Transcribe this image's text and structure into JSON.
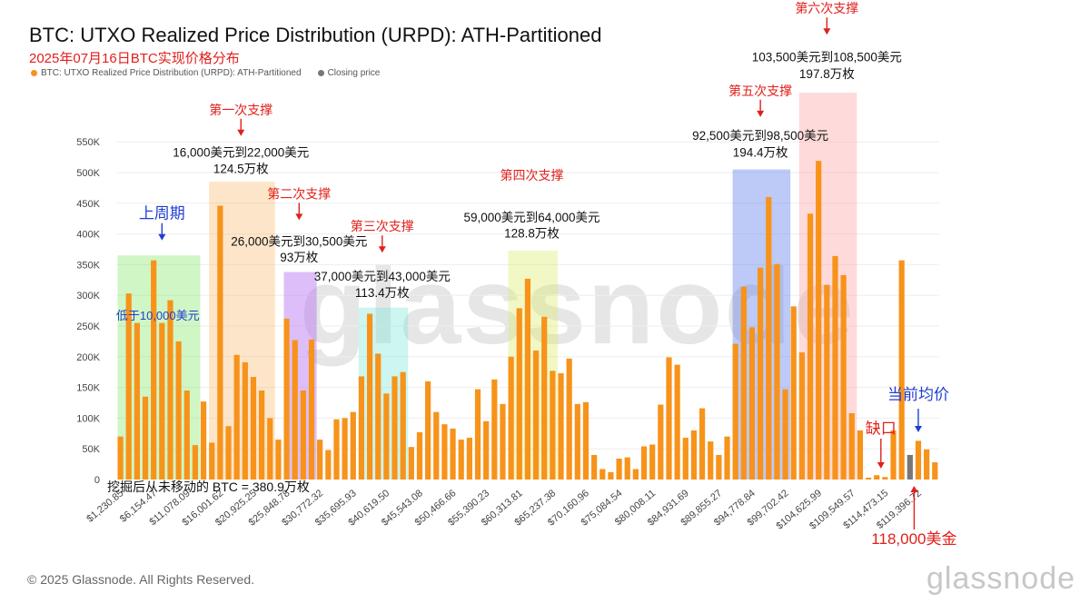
{
  "header": {
    "title": "BTC: UTXO Realized Price Distribution (URPD): ATH-Partitioned",
    "subtitle": "2025年07月16日BTC实现价格分布",
    "legend": [
      {
        "label": "BTC: UTXO Realized Price Distribution (URPD): ATH-Partitioned",
        "color": "#f7931a"
      },
      {
        "label": "Closing price",
        "color": "#777777"
      }
    ]
  },
  "watermark": "glassnode",
  "footer": {
    "copyright": "© 2025 Glassnode. All Rights Reserved.",
    "logo": "glassnode"
  },
  "chart_data": {
    "type": "bar",
    "ylim": [
      0,
      560000
    ],
    "y_ticks": [
      0,
      50000,
      100000,
      150000,
      200000,
      250000,
      300000,
      350000,
      400000,
      450000,
      500000,
      550000
    ],
    "y_tick_labels": [
      "0",
      "50K",
      "100K",
      "150K",
      "200K",
      "250K",
      "300K",
      "350K",
      "400K",
      "450K",
      "500K",
      "550K"
    ],
    "x_tick_labels": [
      "$1,230.85",
      "$6,154.47",
      "$11,078.09",
      "$16,001.62",
      "$20,925.25",
      "$25,848.78",
      "$30,772.32",
      "$35,695.93",
      "$40,619.50",
      "$45,543.08",
      "$50,466.66",
      "$55,390.23",
      "$60,313.81",
      "$65,237.38",
      "$70,160.96",
      "$75,084.54",
      "$80,008.11",
      "$84,931.69",
      "$89,855.27",
      "$94,778.84",
      "$99,702.42",
      "$104,625.99",
      "$109,549.57",
      "$114,473.15",
      "$119,396.72"
    ],
    "values": [
      70000,
      303000,
      255000,
      135000,
      357000,
      255000,
      292000,
      225000,
      145000,
      56000,
      127000,
      60000,
      446000,
      87000,
      203000,
      191000,
      167000,
      145000,
      100000,
      65000,
      262000,
      227000,
      145000,
      228000,
      65000,
      48000,
      98000,
      100000,
      110000,
      168000,
      270000,
      205000,
      140000,
      168000,
      175000,
      53000,
      77000,
      160000,
      110000,
      90000,
      83000,
      65000,
      68000,
      147000,
      95000,
      163000,
      123000,
      200000,
      279000,
      327000,
      210000,
      265000,
      177000,
      173000,
      197000,
      123000,
      126000,
      40000,
      17000,
      12000,
      34000,
      36000,
      17000,
      54000,
      57000,
      122000,
      199000,
      187000,
      68000,
      80000,
      116000,
      62000,
      40000,
      70000,
      221000,
      314000,
      248000,
      345000,
      460000,
      351000,
      147000,
      282000,
      207000,
      433000,
      519000,
      317000,
      364000,
      333000,
      108000,
      80000,
      3000,
      7000,
      4000,
      80000,
      357000,
      40000,
      63000,
      49000,
      28000
    ],
    "closing_index": 95,
    "bar_color": "#f7931a",
    "closing_color": "#777777",
    "bottom_note": "挖掘后从未移动的 BTC = 380.9万枚",
    "regions": [
      {
        "name": "prev-cycle",
        "from": 0,
        "to": 9,
        "top": 365000,
        "color": "rgba(120,230,90,0.35)",
        "label": "低于10,000美元",
        "label_color": "#1f3fd0"
      },
      {
        "name": "support-1",
        "from": 11,
        "to": 18,
        "top": 485000,
        "color": "rgba(250,180,100,0.35)"
      },
      {
        "name": "support-2",
        "from": 20,
        "to": 23,
        "top": 338000,
        "color": "rgba(180,110,240,0.45)"
      },
      {
        "name": "support-3",
        "from": 29,
        "to": 34,
        "top": 280000,
        "color": "rgba(110,230,210,0.35)"
      },
      {
        "name": "support-4",
        "from": 47,
        "to": 52,
        "top": 373000,
        "color": "rgba(220,235,110,0.40)"
      },
      {
        "name": "support-5",
        "from": 74,
        "to": 80,
        "top": 505000,
        "color": "rgba(90,120,235,0.40)"
      },
      {
        "name": "support-6",
        "from": 82,
        "to": 88,
        "top": 630000,
        "color": "rgba(255,150,150,0.35)"
      }
    ],
    "annotations": [
      {
        "name": "prev-cycle-label",
        "text": "上周期",
        "color": "#1f3fd0",
        "size": 17,
        "cx": 5,
        "val": 425000,
        "arrow": true
      },
      {
        "name": "support-1-label",
        "text": "第一次支撑",
        "color": "#e0201b",
        "size": 14,
        "cx": 14.5,
        "val": 595000,
        "arrow": true
      },
      {
        "name": "support-1-range",
        "text": "16,000美元到22,000美元",
        "color": "#111",
        "size": 13.5,
        "cx": 14.5,
        "val": 526000
      },
      {
        "name": "support-1-amount",
        "text": "124.5万枚",
        "color": "#111",
        "size": 13.5,
        "cx": 14.5,
        "val": 499000
      },
      {
        "name": "support-2-label",
        "text": "第二次支撑",
        "color": "#e0201b",
        "size": 14,
        "cx": 21.5,
        "val": 458000,
        "arrow": true
      },
      {
        "name": "support-2-range",
        "text": "26,000美元到30,500美元",
        "color": "#111",
        "size": 13.5,
        "cx": 21.5,
        "val": 381000
      },
      {
        "name": "support-2-amount",
        "text": "93万枚",
        "color": "#111",
        "size": 13.5,
        "cx": 21.5,
        "val": 355000
      },
      {
        "name": "support-3-label",
        "text": "第三次支撑",
        "color": "#e0201b",
        "size": 14,
        "cx": 31.5,
        "val": 405000,
        "arrow": true
      },
      {
        "name": "support-3-range",
        "text": "37,000美元到43,000美元",
        "color": "#111",
        "size": 13.5,
        "cx": 31.5,
        "val": 324000
      },
      {
        "name": "support-3-amount",
        "text": "113.4万枚",
        "color": "#111",
        "size": 13.5,
        "cx": 31.5,
        "val": 297000
      },
      {
        "name": "support-4-label",
        "text": "第四次支撑",
        "color": "#e0201b",
        "size": 14,
        "cx": 49.5,
        "val": 488000
      },
      {
        "name": "support-4-range",
        "text": "59,000美元到64,000美元",
        "color": "#111",
        "size": 13.5,
        "cx": 49.5,
        "val": 420000
      },
      {
        "name": "support-4-amount",
        "text": "128.8万枚",
        "color": "#111",
        "size": 13.5,
        "cx": 49.5,
        "val": 394000
      },
      {
        "name": "support-5-label",
        "text": "第五次支撑",
        "color": "#e0201b",
        "size": 14,
        "cx": 77,
        "val": 626000,
        "arrow": true
      },
      {
        "name": "support-5-range",
        "text": "92,500美元到98,500美元",
        "color": "#111",
        "size": 13.5,
        "cx": 77,
        "val": 553000
      },
      {
        "name": "support-5-amount",
        "text": "194.4万枚",
        "color": "#111",
        "size": 13.5,
        "cx": 77,
        "val": 526000
      },
      {
        "name": "support-6-label",
        "text": "第六次支撑",
        "color": "#e0201b",
        "size": 14,
        "cx": 85,
        "val": 760000,
        "arrow": true
      },
      {
        "name": "support-6-range",
        "text": "103,500美元到108,500美元",
        "color": "#111",
        "size": 13.5,
        "cx": 85,
        "val": 681000
      },
      {
        "name": "support-6-amount",
        "text": "197.8万枚",
        "color": "#111",
        "size": 13.5,
        "cx": 85,
        "val": 654000
      },
      {
        "name": "gap-label",
        "text": "缺口",
        "color": "#e0201b",
        "size": 17,
        "cx": 91.5,
        "val": 75000
      },
      {
        "name": "avg-price-label",
        "text": "当前均价",
        "color": "#1f3fd0",
        "size": 17,
        "cx": 96,
        "val": 130000
      },
      {
        "name": "price-118k-label",
        "text": "118,000美金",
        "color": "#e0201b",
        "size": 17,
        "cx": 95.5,
        "val": -105000
      }
    ]
  }
}
